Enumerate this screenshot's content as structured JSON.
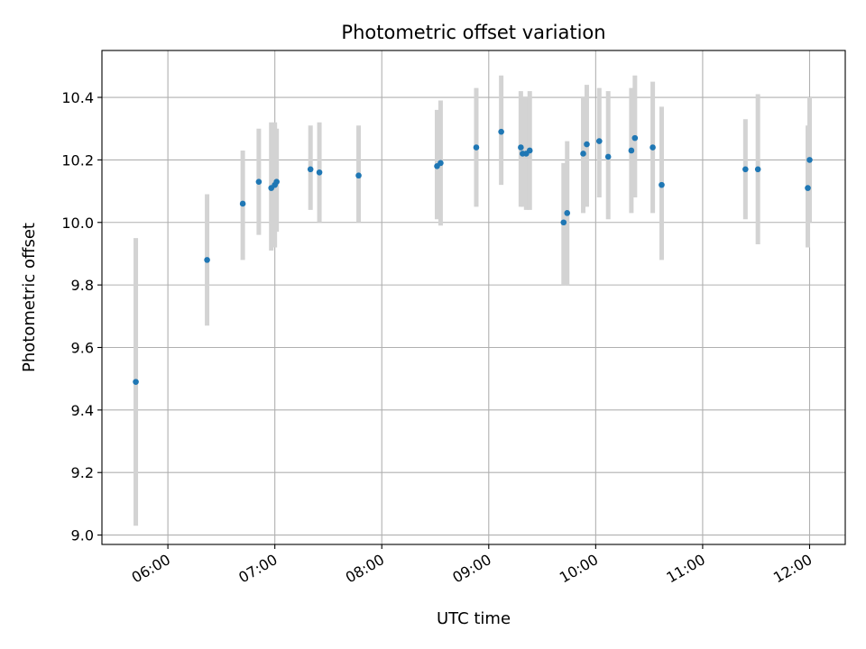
{
  "chart_data": {
    "type": "scatter",
    "title": "Photometric offset variation",
    "xlabel": "UTC time",
    "ylabel": "Photometric offset",
    "grid": true,
    "xlim": [
      "05:23",
      "12:20"
    ],
    "ylim": [
      8.97,
      10.55
    ],
    "x_ticks": [
      "06:00",
      "07:00",
      "08:00",
      "09:00",
      "10:00",
      "11:00",
      "12:00"
    ],
    "y_ticks": [
      "9.0",
      "9.2",
      "9.4",
      "9.6",
      "9.8",
      "10.0",
      "10.2",
      "10.4"
    ],
    "marker_color": "#1f77b4",
    "errorbar_color": "#d3d3d3",
    "points": [
      {
        "t": "05:42",
        "y": 9.49,
        "ylo": 9.03,
        "yhi": 9.95
      },
      {
        "t": "06:22",
        "y": 9.88,
        "ylo": 9.67,
        "yhi": 10.09
      },
      {
        "t": "06:42",
        "y": 10.06,
        "ylo": 9.88,
        "yhi": 10.23
      },
      {
        "t": "06:51",
        "y": 10.13,
        "ylo": 9.96,
        "yhi": 10.3
      },
      {
        "t": "06:58",
        "y": 10.11,
        "ylo": 9.91,
        "yhi": 10.32
      },
      {
        "t": "07:00",
        "y": 10.12,
        "ylo": 9.92,
        "yhi": 10.32
      },
      {
        "t": "07:01",
        "y": 10.13,
        "ylo": 9.97,
        "yhi": 10.3
      },
      {
        "t": "07:20",
        "y": 10.17,
        "ylo": 10.04,
        "yhi": 10.31
      },
      {
        "t": "07:25",
        "y": 10.16,
        "ylo": 10.0,
        "yhi": 10.32
      },
      {
        "t": "07:47",
        "y": 10.15,
        "ylo": 10.0,
        "yhi": 10.31
      },
      {
        "t": "08:31",
        "y": 10.18,
        "ylo": 10.01,
        "yhi": 10.36
      },
      {
        "t": "08:33",
        "y": 10.19,
        "ylo": 9.99,
        "yhi": 10.39
      },
      {
        "t": "08:53",
        "y": 10.24,
        "ylo": 10.05,
        "yhi": 10.43
      },
      {
        "t": "09:07",
        "y": 10.29,
        "ylo": 10.12,
        "yhi": 10.47
      },
      {
        "t": "09:18",
        "y": 10.24,
        "ylo": 10.05,
        "yhi": 10.42
      },
      {
        "t": "09:19",
        "y": 10.22,
        "ylo": 10.05,
        "yhi": 10.4
      },
      {
        "t": "09:21",
        "y": 10.22,
        "ylo": 10.04,
        "yhi": 10.4
      },
      {
        "t": "09:23",
        "y": 10.23,
        "ylo": 10.04,
        "yhi": 10.42
      },
      {
        "t": "09:42",
        "y": 10.0,
        "ylo": 9.8,
        "yhi": 10.19
      },
      {
        "t": "09:44",
        "y": 10.03,
        "ylo": 9.8,
        "yhi": 10.26
      },
      {
        "t": "09:53",
        "y": 10.22,
        "ylo": 10.03,
        "yhi": 10.4
      },
      {
        "t": "09:55",
        "y": 10.25,
        "ylo": 10.05,
        "yhi": 10.44
      },
      {
        "t": "10:02",
        "y": 10.26,
        "ylo": 10.08,
        "yhi": 10.43
      },
      {
        "t": "10:07",
        "y": 10.21,
        "ylo": 10.01,
        "yhi": 10.42
      },
      {
        "t": "10:20",
        "y": 10.23,
        "ylo": 10.03,
        "yhi": 10.43
      },
      {
        "t": "10:22",
        "y": 10.27,
        "ylo": 10.08,
        "yhi": 10.47
      },
      {
        "t": "10:32",
        "y": 10.24,
        "ylo": 10.03,
        "yhi": 10.45
      },
      {
        "t": "10:37",
        "y": 10.12,
        "ylo": 9.88,
        "yhi": 10.37
      },
      {
        "t": "11:24",
        "y": 10.17,
        "ylo": 10.01,
        "yhi": 10.33
      },
      {
        "t": "11:31",
        "y": 10.17,
        "ylo": 9.93,
        "yhi": 10.41
      },
      {
        "t": "11:59",
        "y": 10.11,
        "ylo": 9.92,
        "yhi": 10.31
      },
      {
        "t": "12:00",
        "y": 10.2,
        "ylo": 10.0,
        "yhi": 10.4
      }
    ]
  }
}
